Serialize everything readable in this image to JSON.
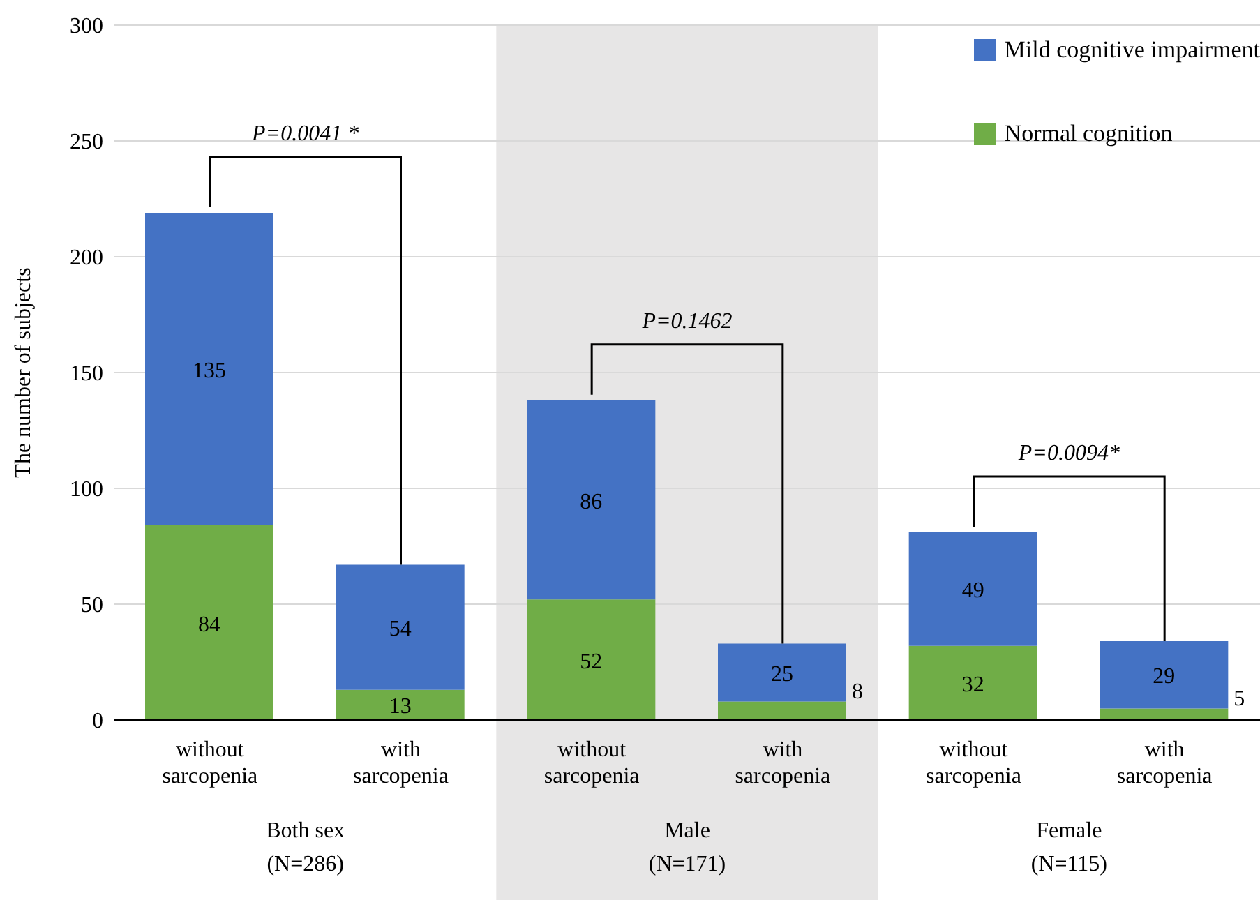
{
  "chart_data": {
    "type": "bar",
    "ylabel": "The number of subjects",
    "categories": [
      "without sarcopenia",
      "with sarcopenia",
      "without sarcopenia",
      "with sarcopenia",
      "without sarcopenia",
      "with sarcopenia"
    ],
    "series": [
      {
        "name": "Normal cognition",
        "color": "#70ad47",
        "values": [
          84,
          13,
          52,
          8,
          32,
          5
        ]
      },
      {
        "name": "Mild cognitive impairment",
        "color": "#4472c4",
        "values": [
          135,
          54,
          86,
          25,
          49,
          29
        ]
      }
    ],
    "stacked": true,
    "data_labels": true,
    "ylim": [
      0,
      300
    ],
    "yticks": [
      0,
      50,
      100,
      150,
      200,
      250,
      300
    ],
    "grid": "y",
    "legend": "top right",
    "annotations": [
      "P=0.0041 *",
      "P=0.1462",
      "P=0.0094*",
      "Both sex (N=286)",
      "Male (N=171)",
      "Female (N=115)"
    ]
  }
}
